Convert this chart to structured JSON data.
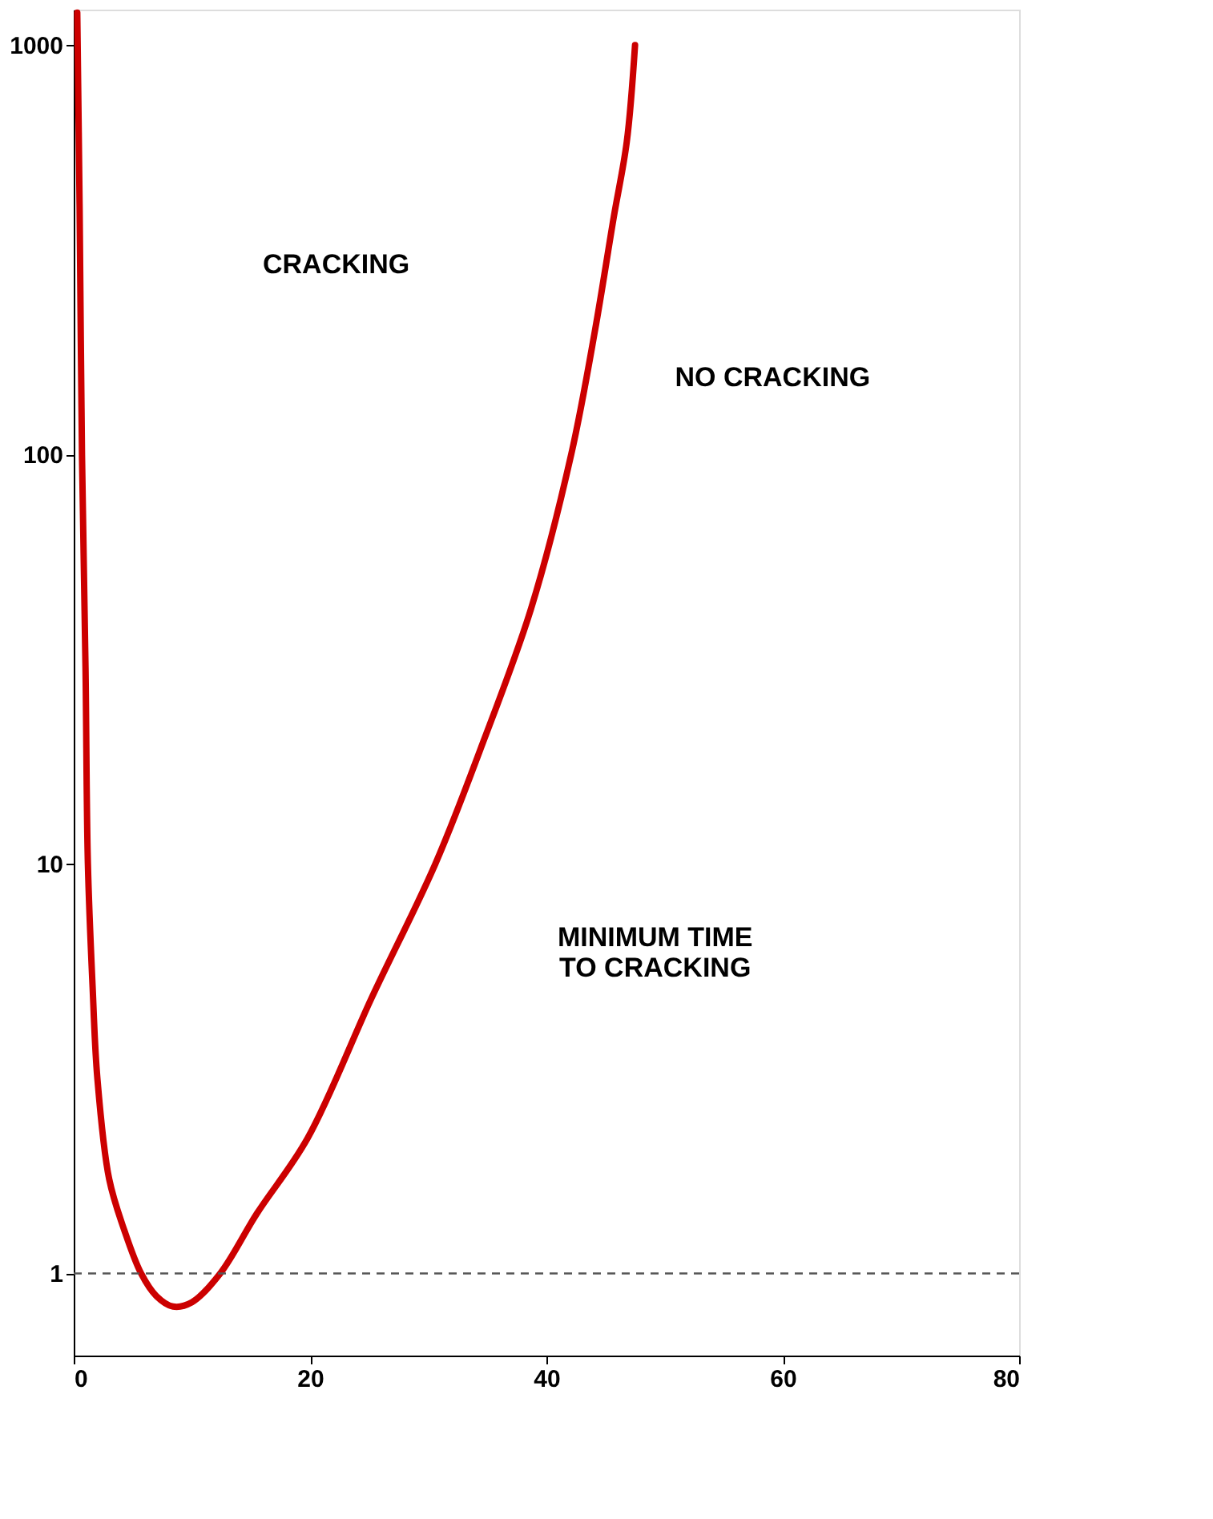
{
  "chart_data": {
    "type": "line",
    "log": "y",
    "series": [
      {
        "color": "#cc0000",
        "x": [
          0.3,
          0.5,
          0.7,
          1.0,
          1.2,
          1.6,
          2.0,
          3.0,
          4.3,
          5.7,
          7.0,
          8.4,
          10.0,
          12.4,
          15.5,
          19.8,
          25.2,
          30.6,
          34.4,
          38.7,
          42.1,
          44.1,
          45.7,
          46.8,
          47.5
        ],
        "values": [
          1200,
          400,
          100,
          30,
          10,
          5,
          3.0,
          1.7,
          1.27,
          1.0,
          0.88,
          0.83,
          0.85,
          1.0,
          1.4,
          2.14,
          4.7,
          10,
          19,
          42,
          100,
          200,
          380,
          580,
          1000
        ]
      }
    ],
    "xlim": [
      0,
      80
    ],
    "xticks": [
      0,
      20,
      40,
      60,
      80
    ],
    "ylim": [
      0.63,
      1220
    ],
    "yticks": [
      1,
      10,
      100,
      {
        "value": 1000,
        "label": "1000"
      }
    ],
    "ref_lines": [
      {
        "axis": "y",
        "value": 1,
        "color": "#555555",
        "line_style": "dashed"
      }
    ],
    "annotations": [
      "CRACKING",
      "NO CRACKING",
      "MINIMUM TIME\nTO CRACKING"
    ],
    "grid": false,
    "marker": "none",
    "line_style": "solid"
  }
}
